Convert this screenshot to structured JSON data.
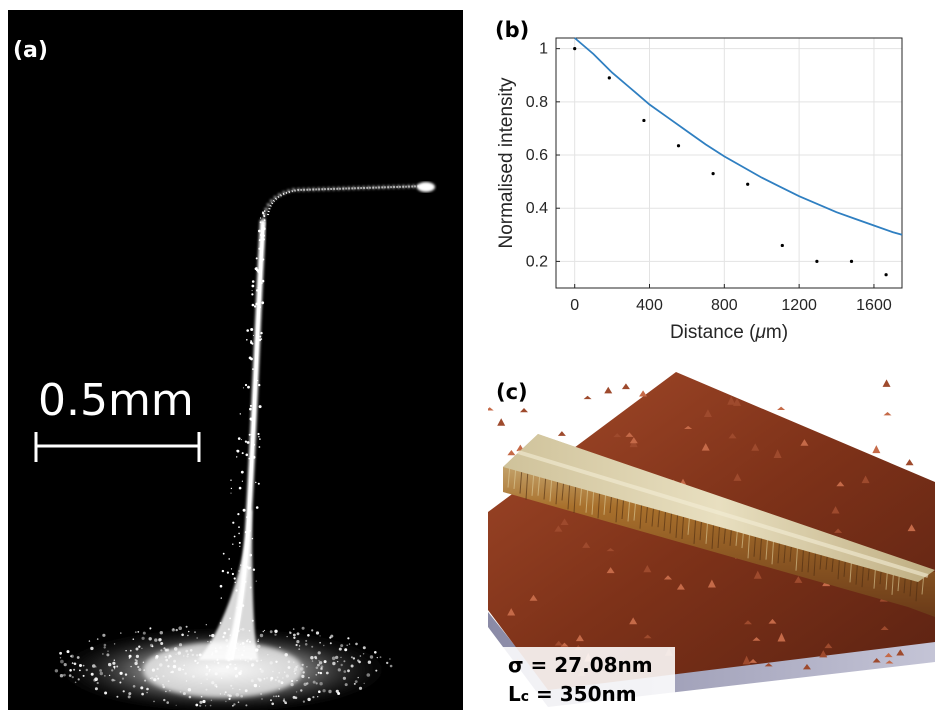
{
  "panel_a": {
    "label": "(a)",
    "scale_bar_text": "0.5mm"
  },
  "panel_b": {
    "label": "(b)"
  },
  "panel_c": {
    "label": "(c)",
    "sigma_text": "σ = 27.08nm",
    "lc_prefix": "L",
    "lc_sub": "c",
    "lc_rest": " = 350nm"
  },
  "colors": {
    "fit_line": "#2f7fc1",
    "points": "#000000",
    "afm_surface": "#8a3a22",
    "afm_ridge": "#c9b98a"
  },
  "chart_data": {
    "type": "scatter",
    "xlabel_main": "Distance (",
    "xlabel_unit": "μ",
    "xlabel_end": "m)",
    "ylabel": "Normalised intensity",
    "xlim": [
      -100,
      1750
    ],
    "ylim": [
      0.1,
      1.04
    ],
    "xticks": [
      0,
      400,
      800,
      1200,
      1600
    ],
    "yticks": [
      0.2,
      0.4,
      0.6,
      0.8,
      1
    ],
    "ytick_labels": [
      "0.2",
      "0.4",
      "0.6",
      "0.8",
      "1"
    ],
    "grid": true,
    "points": {
      "x": [
        0,
        185,
        370,
        555,
        740,
        925,
        1110,
        1295,
        1480,
        1665
      ],
      "y": [
        1.0,
        0.89,
        0.73,
        0.635,
        0.53,
        0.49,
        0.26,
        0.2,
        0.2,
        0.15
      ]
    },
    "fit": {
      "model": "exponential decay",
      "x": [
        0,
        100,
        200,
        300,
        400,
        500,
        600,
        700,
        800,
        900,
        1000,
        1100,
        1200,
        1300,
        1400,
        1500,
        1600,
        1700,
        1750
      ],
      "y": [
        1.05,
        0.98,
        0.91,
        0.85,
        0.79,
        0.74,
        0.69,
        0.64,
        0.595,
        0.555,
        0.515,
        0.48,
        0.445,
        0.415,
        0.385,
        0.36,
        0.335,
        0.31,
        0.3
      ]
    }
  }
}
